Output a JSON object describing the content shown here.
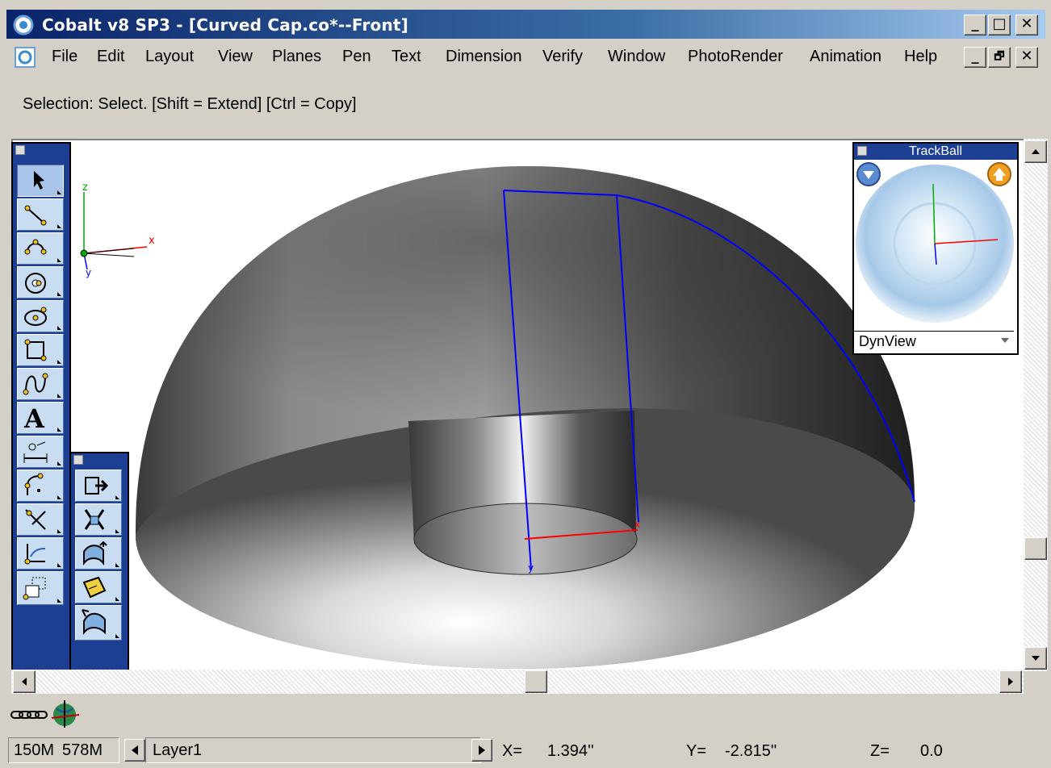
{
  "window": {
    "title": "Cobalt v8 SP3 - [Curved Cap.co*--Front]",
    "minimize": "_",
    "maximize": "□",
    "close": "✕",
    "doc_minimize": "_",
    "doc_restore": "🗗",
    "doc_close": "✕"
  },
  "menu": [
    "File",
    "Edit",
    "Layout",
    "View",
    "Planes",
    "Pen",
    "Text",
    "Dimension",
    "Verify",
    "Window",
    "PhotoRender",
    "Animation",
    "Help"
  ],
  "hint": "Selection: Select. [Shift = Extend] [Ctrl = Copy]",
  "axes": {
    "x": "x",
    "y": "y",
    "z": "z"
  },
  "part_axes": {
    "x": "x",
    "y": "y"
  },
  "trackball": {
    "title": "TrackBall",
    "mode": "DynView"
  },
  "status": {
    "memory1": "150M",
    "memory2": "578M",
    "layer": "Layer1",
    "x_label": "X=",
    "x_value": "1.394''",
    "y_label": "Y=",
    "y_value": "-2.815''",
    "z_label": "Z=",
    "z_value": "0.0"
  },
  "colors": {
    "title_start": "#0a246a",
    "title_end": "#a6caf0",
    "palette": "#1c3f94",
    "profile_line": "#0000ff",
    "x_axis": "#ff0000",
    "y_axis": "#00aa00"
  }
}
